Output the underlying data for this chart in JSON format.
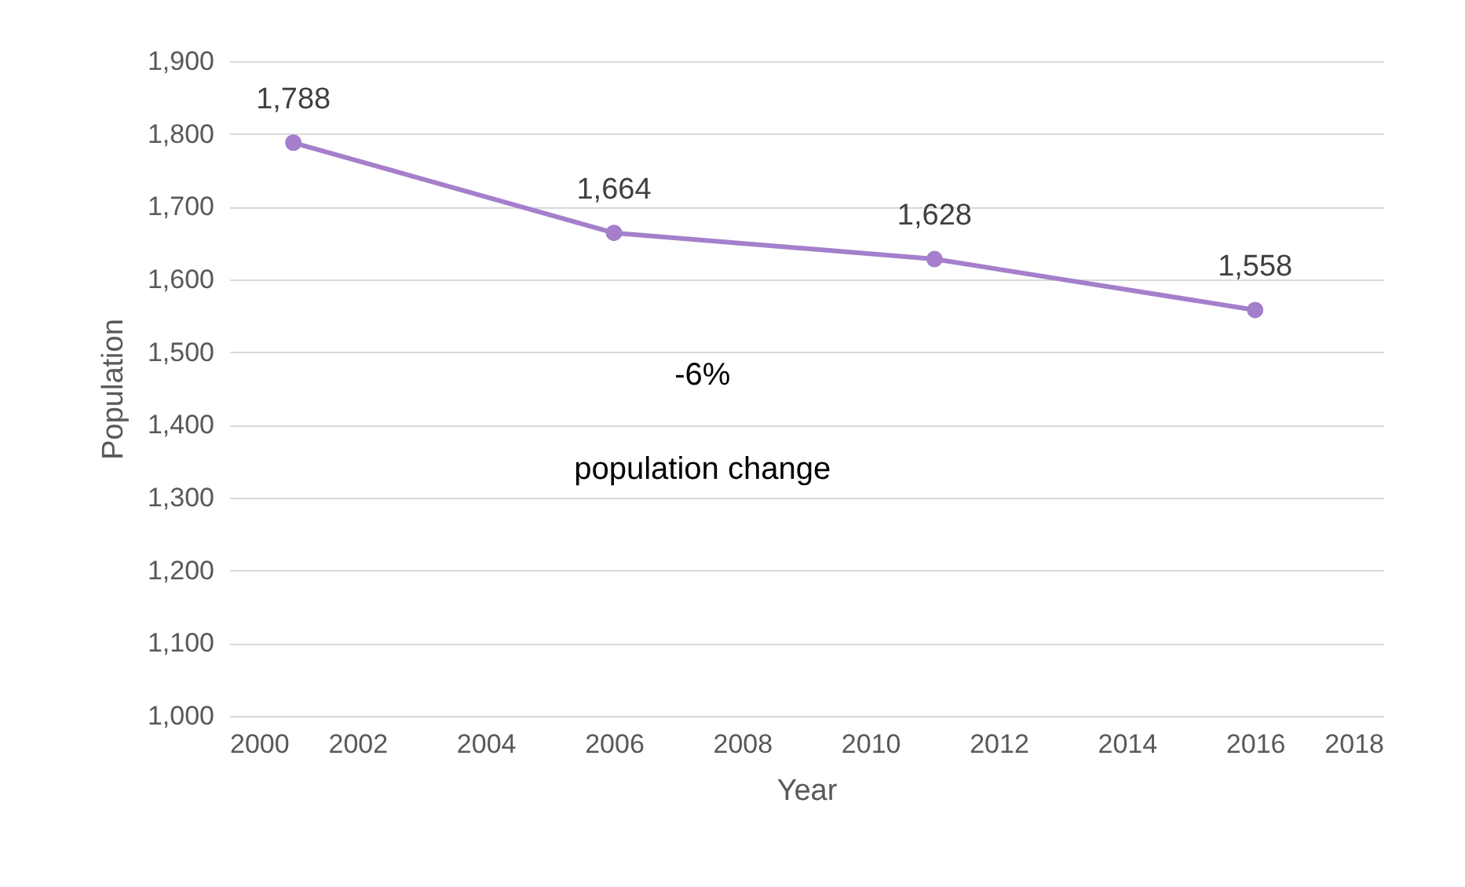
{
  "chart_data": {
    "type": "line",
    "xlabel": "Year",
    "ylabel": "Population",
    "x": [
      2001,
      2006,
      2011,
      2016
    ],
    "series": [
      {
        "color": "#a57fcb",
        "values": [
          1788,
          1664,
          1628,
          1558
        ],
        "value_labels": [
          "1,788",
          "1,664",
          "1,628",
          "1,558"
        ]
      }
    ],
    "xlim": [
      2000,
      2018
    ],
    "xticks": [
      2000,
      2002,
      2004,
      2006,
      2008,
      2010,
      2012,
      2014,
      2016,
      2018
    ],
    "ylim": [
      1000,
      1900
    ],
    "yticks": [
      {
        "value": 1000,
        "label": "1,000"
      },
      {
        "value": 1100,
        "label": "1,100"
      },
      {
        "value": 1200,
        "label": "1,200"
      },
      {
        "value": 1300,
        "label": "1,300"
      },
      {
        "value": 1400,
        "label": "1,400"
      },
      {
        "value": 1500,
        "label": "1,500"
      },
      {
        "value": 1600,
        "label": "1,600"
      },
      {
        "value": 1700,
        "label": "1,700"
      },
      {
        "value": 1800,
        "label": "1,800"
      },
      {
        "value": 1900,
        "label": "1,900"
      }
    ],
    "grid": "y",
    "marker": "circle",
    "line_style": "solid",
    "annotations": [
      "-6%",
      "population change"
    ]
  }
}
